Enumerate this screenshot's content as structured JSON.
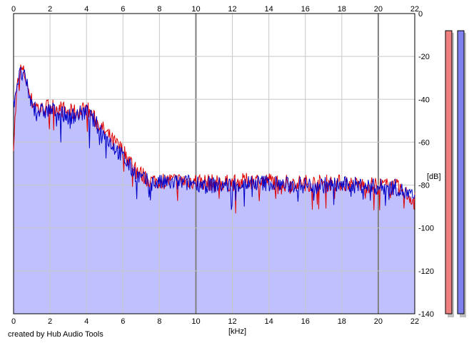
{
  "credit": "created by Hub Audio Tools",
  "colors": {
    "background": "#ffffff",
    "grid": "#c8c8c8",
    "grid_major": "#808080",
    "fill": "#c0c0ff",
    "channel_1": "#e00000",
    "channel_2": "#0000c8",
    "meter_1": "#f08080",
    "meter_2": "#8080f0"
  },
  "chart_data": {
    "type": "line",
    "title": "",
    "xlabel": "[kHz]",
    "ylabel": "[dB]",
    "xlim": [
      0,
      22
    ],
    "ylim": [
      -140,
      0
    ],
    "x_ticks": [
      0,
      2,
      4,
      6,
      8,
      10,
      12,
      14,
      16,
      18,
      20,
      22
    ],
    "x_tick_labels": [
      "0",
      "2",
      "4",
      "6",
      "8",
      "10",
      "12",
      "14",
      "16",
      "18",
      "20",
      "22"
    ],
    "y_ticks": [
      0,
      -20,
      -40,
      -60,
      -80,
      -100,
      -120,
      -140
    ],
    "y_tick_labels": [
      "0",
      "-20",
      "-40",
      "-60",
      "-80",
      "-100",
      "-120",
      "-140"
    ],
    "major_x_gridlines": [
      10,
      20
    ],
    "grid": true,
    "area_fill": true,
    "series": [
      {
        "color": "#e00000",
        "x": [
          0,
          0.2,
          0.4,
          0.6,
          0.8,
          1.0,
          1.5,
          2.0,
          2.5,
          3.0,
          3.5,
          4.0,
          4.5,
          5.0,
          5.5,
          6.0,
          6.5,
          7.0,
          7.5,
          8.0,
          9.0,
          10.0,
          11.0,
          12.0,
          13.0,
          14.0,
          15.0,
          16.0,
          17.0,
          18.0,
          19.0,
          20.0,
          21.0,
          21.5,
          22.0
        ],
        "values": [
          -60,
          -34,
          -26,
          -28,
          -35,
          -41,
          -45,
          -43,
          -44,
          -46,
          -46,
          -44,
          -50,
          -55,
          -60,
          -64,
          -70,
          -75,
          -78,
          -78,
          -78,
          -78,
          -79,
          -79,
          -78,
          -78,
          -79,
          -79,
          -79,
          -79,
          -80,
          -80,
          -81,
          -84,
          -87
        ]
      },
      {
        "color": "#0000c8",
        "x": [
          0,
          0.2,
          0.4,
          0.6,
          0.8,
          1.0,
          1.5,
          2.0,
          2.5,
          3.0,
          3.5,
          4.0,
          4.5,
          5.0,
          5.5,
          6.0,
          6.5,
          7.0,
          7.5,
          8.0,
          9.0,
          10.0,
          11.0,
          12.0,
          13.0,
          14.0,
          15.0,
          16.0,
          17.0,
          18.0,
          19.0,
          20.0,
          21.0,
          21.5,
          22.0
        ],
        "values": [
          -42,
          -32,
          -28,
          -30,
          -36,
          -43,
          -46,
          -45,
          -46,
          -48,
          -47,
          -46,
          -51,
          -57,
          -62,
          -67,
          -73,
          -77,
          -79,
          -79,
          -79,
          -79,
          -80,
          -80,
          -79,
          -79,
          -80,
          -80,
          -80,
          -80,
          -80,
          -81,
          -81,
          -84,
          -86
        ]
      }
    ],
    "level_meters": [
      {
        "color": "#f08080",
        "top": -8,
        "bottom": -140
      },
      {
        "color": "#8080f0",
        "top": -8,
        "bottom": -140
      }
    ]
  }
}
